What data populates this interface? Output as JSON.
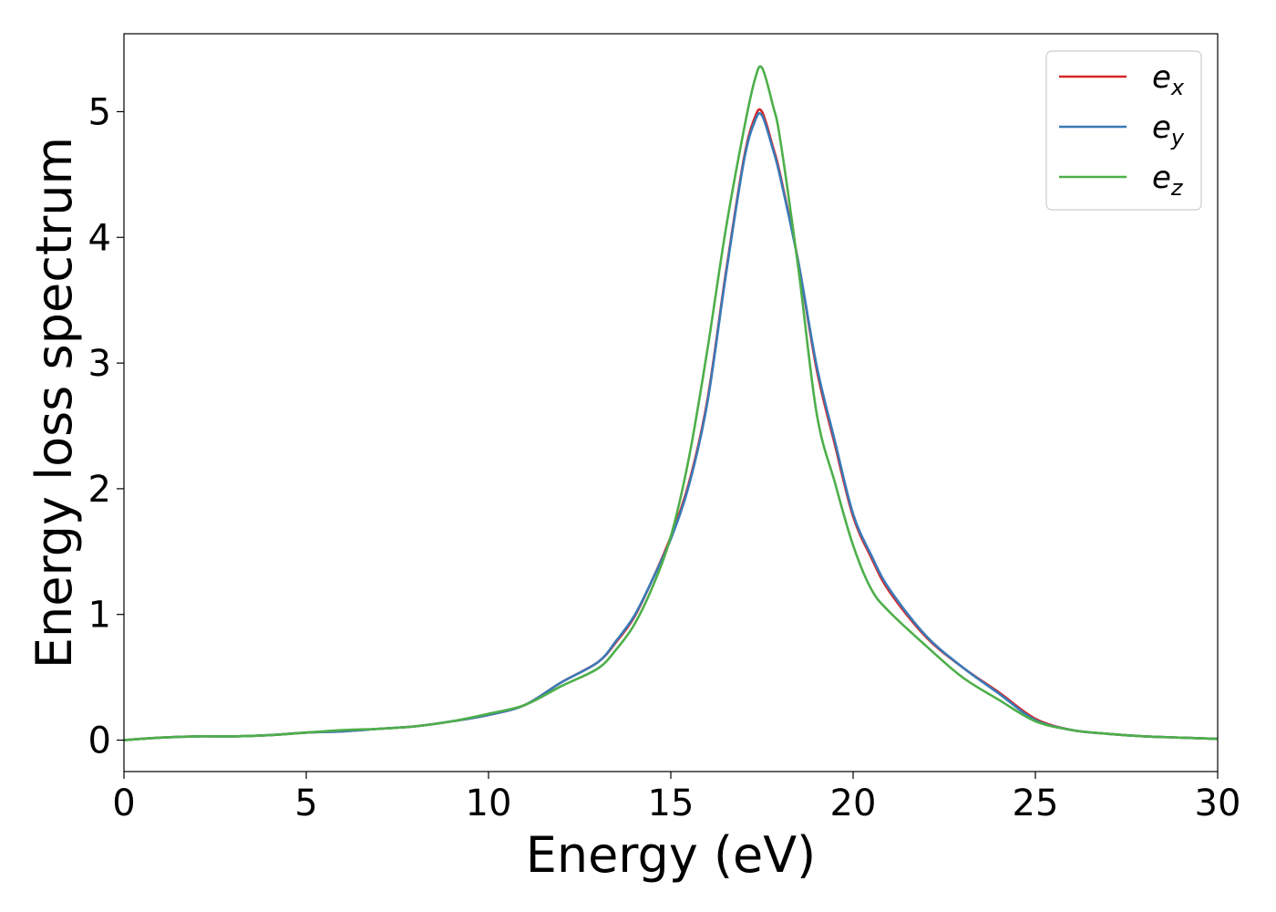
{
  "chart_data": {
    "type": "line",
    "title": "",
    "xlabel": "Energy (eV)",
    "ylabel": "Energy loss spectrum",
    "xlim": [
      0,
      30
    ],
    "ylim": [
      -0.25,
      5.62
    ],
    "xticks": [
      0,
      5,
      10,
      15,
      20,
      25,
      30
    ],
    "yticks": [
      0,
      1,
      2,
      3,
      4,
      5
    ],
    "grid": false,
    "legend_position": "top-right",
    "series": [
      {
        "name": "e_x",
        "legend_base": "e",
        "legend_sub": "x",
        "color": "#d62728",
        "x": [
          0,
          1,
          2,
          3,
          4,
          5,
          6,
          7,
          8,
          9,
          10,
          11,
          12,
          13,
          13.5,
          14,
          14.5,
          15,
          15.5,
          16,
          16.5,
          17,
          17.3,
          17.5,
          17.8,
          18,
          18.5,
          19,
          19.5,
          20,
          20.5,
          21,
          22,
          23,
          24,
          25,
          26,
          27,
          28,
          29,
          30
        ],
        "y": [
          0.0,
          0.02,
          0.03,
          0.03,
          0.04,
          0.06,
          0.07,
          0.09,
          0.11,
          0.15,
          0.2,
          0.28,
          0.46,
          0.62,
          0.78,
          0.98,
          1.28,
          1.62,
          2.05,
          2.7,
          3.7,
          4.62,
          4.95,
          5.0,
          4.72,
          4.5,
          3.8,
          2.95,
          2.35,
          1.78,
          1.45,
          1.18,
          0.82,
          0.58,
          0.38,
          0.17,
          0.08,
          0.05,
          0.03,
          0.02,
          0.01
        ]
      },
      {
        "name": "e_y",
        "legend_base": "e",
        "legend_sub": "y",
        "color": "#3a7ab8",
        "x": [
          0,
          1,
          2,
          3,
          4,
          5,
          6,
          7,
          8,
          9,
          10,
          11,
          12,
          13,
          13.5,
          14,
          14.5,
          15,
          15.5,
          16,
          16.5,
          17,
          17.3,
          17.5,
          17.8,
          18,
          18.5,
          19,
          19.5,
          20,
          20.5,
          21,
          22,
          23,
          24,
          25,
          26,
          27,
          28,
          29,
          30
        ],
        "y": [
          0.0,
          0.02,
          0.03,
          0.03,
          0.04,
          0.06,
          0.07,
          0.09,
          0.11,
          0.15,
          0.2,
          0.28,
          0.46,
          0.62,
          0.79,
          0.99,
          1.28,
          1.6,
          2.03,
          2.68,
          3.68,
          4.6,
          4.92,
          4.97,
          4.7,
          4.48,
          3.8,
          2.98,
          2.38,
          1.8,
          1.47,
          1.2,
          0.83,
          0.58,
          0.37,
          0.16,
          0.08,
          0.05,
          0.03,
          0.02,
          0.01
        ]
      },
      {
        "name": "e_z",
        "legend_base": "e",
        "legend_sub": "z",
        "color": "#4daf4a",
        "x": [
          0,
          1,
          2,
          3,
          4,
          5,
          6,
          7,
          8,
          9,
          10,
          11,
          12,
          13,
          13.5,
          14,
          14.5,
          15,
          15.5,
          16,
          16.5,
          17,
          17.3,
          17.5,
          17.8,
          18,
          18.5,
          19,
          19.5,
          20,
          20.5,
          21,
          22,
          23,
          24,
          25,
          26,
          27,
          28,
          29,
          30
        ],
        "y": [
          0.0,
          0.02,
          0.03,
          0.03,
          0.04,
          0.06,
          0.08,
          0.09,
          0.11,
          0.15,
          0.21,
          0.28,
          0.43,
          0.57,
          0.72,
          0.92,
          1.22,
          1.62,
          2.25,
          3.1,
          4.05,
          4.85,
          5.25,
          5.35,
          5.05,
          4.78,
          3.75,
          2.6,
          2.05,
          1.55,
          1.2,
          1.02,
          0.75,
          0.5,
          0.32,
          0.15,
          0.08,
          0.05,
          0.03,
          0.02,
          0.01
        ]
      }
    ]
  }
}
